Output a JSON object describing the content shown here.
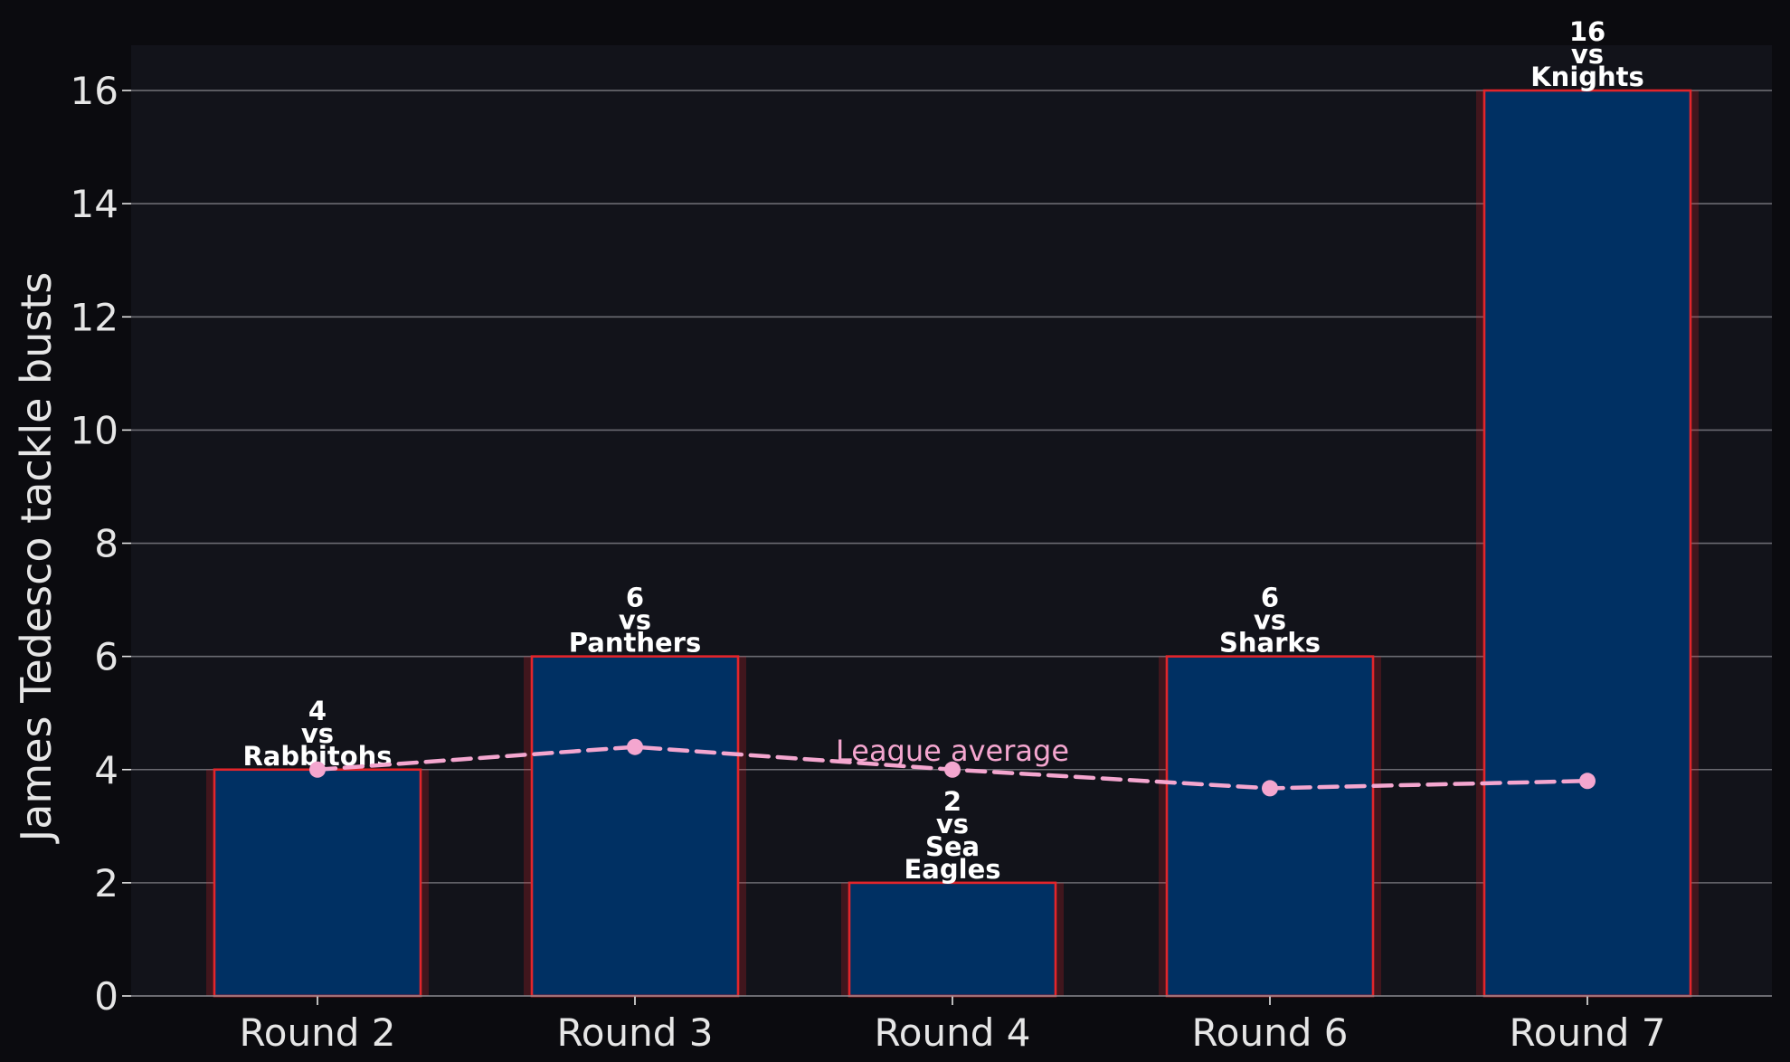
{
  "chart_data": {
    "type": "bar",
    "categories": [
      "Round 2",
      "Round 3",
      "Round 4",
      "Round 6",
      "Round 7"
    ],
    "values": [
      4,
      6,
      2,
      6,
      16
    ],
    "bar_labels": [
      [
        "4",
        "vs",
        "Rabbitohs"
      ],
      [
        "6",
        "vs",
        "Panthers"
      ],
      [
        "2",
        "vs",
        "Sea",
        "Eagles"
      ],
      [
        "6",
        "vs",
        "Sharks"
      ],
      [
        "16",
        "vs",
        "Knights"
      ]
    ],
    "overlay_line": {
      "label": "League average",
      "values": [
        4.0,
        4.4,
        4.0,
        3.67,
        3.8
      ],
      "style": "dashed",
      "color": "#f4a6cf"
    },
    "ylabel": "James Tedesco tackle busts",
    "xlabel": "",
    "ylim": [
      0,
      16.8
    ],
    "yticks": [
      0,
      2,
      4,
      6,
      8,
      10,
      12,
      14,
      16
    ],
    "grid": "horizontal",
    "colors": {
      "bar_fill": "#003063",
      "bar_edge": "#e2252b",
      "plot_bg": "#12131a",
      "page_bg": "#0b0b0f",
      "grid": "#6b6b72",
      "text": "#e6e6e6"
    }
  }
}
